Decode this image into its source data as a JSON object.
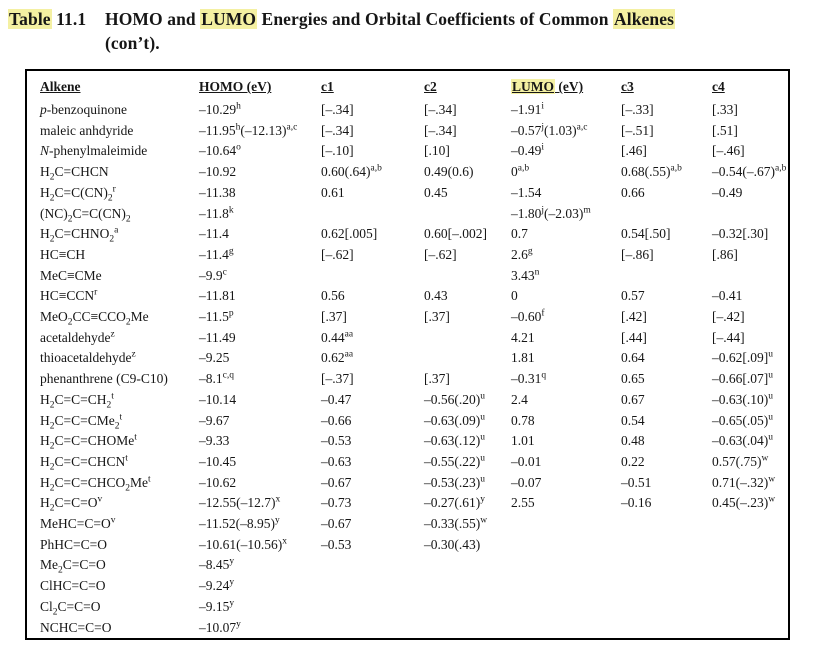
{
  "colors": {
    "highlight": "#f4f0a2",
    "border": "#000000",
    "text": "#161616",
    "background": "#ffffff"
  },
  "title": {
    "label_highlight": "Table",
    "label_number": " 11.1",
    "line1_pre": "HOMO and ",
    "line1_hl1": "LUMO",
    "line1_mid": " Energies and Orbital Coefficients of Common ",
    "line1_hl2": "Alkenes",
    "line2": "(con’t)."
  },
  "table": {
    "headers": [
      {
        "text": "Alkene"
      },
      {
        "text": "HOMO (eV)"
      },
      {
        "text": "c1"
      },
      {
        "text": "c2"
      },
      {
        "text": "LUMO (eV)",
        "highlight": "LUMO"
      },
      {
        "text": "c3"
      },
      {
        "text": "c4"
      }
    ],
    "rows": [
      [
        "*p*-benzoquinone",
        "–10.29^{h}",
        "[–.34]",
        "[–.34]",
        "–1.91^{i}",
        "[–.33]",
        "[.33]"
      ],
      [
        "maleic anhdyride",
        "–11.95^{h}(–12.13)^{a,c}",
        "[–.34]",
        "[–.34]",
        "–0.57^{j}(1.03)^{a,c}",
        "[–.51]",
        "[.51]"
      ],
      [
        "*N*-phenylmaleimide",
        "–10.64^{o}",
        "[–.10]",
        "[.10]",
        "–0.49^{i}",
        "[.46]",
        "[–.46]"
      ],
      [
        "H_{2}C=CHCN",
        "–10.92",
        "0.60(.64)^{a,b}",
        "0.49(0.6)",
        "0^{a,b}",
        "0.68(.55)^{a,b}",
        "–0.54(–.67)^{a,b}"
      ],
      [
        "H_{2}C=C(CN)_{2}^{r}",
        "–11.38",
        "0.61",
        "0.45",
        "–1.54",
        "0.66",
        "–0.49"
      ],
      [
        "(NC)_{2}C=C(CN)_{2}",
        "–11.8^{k}",
        "",
        "",
        "–1.80^{j}(–2.03)^{m}",
        "",
        ""
      ],
      [
        "H_{2}C=CHNO_{2}^{a}",
        "–11.4",
        "0.62[.005]",
        "0.60[–.002]",
        "0.7",
        "0.54[.50]",
        "–0.32[.30]"
      ],
      [
        "HC≡CH",
        "–11.4^{g}",
        "[–.62]",
        "[–.62]",
        "2.6^{g}",
        "[–.86]",
        "[.86]"
      ],
      [
        "MeC≡CMe",
        "–9.9^{c}",
        "",
        "",
        "3.43^{n}",
        "",
        ""
      ],
      [
        "HC≡CCN^{r}",
        "–11.81",
        "0.56",
        "0.43",
        "0",
        "0.57",
        "–0.41"
      ],
      [
        "MeO_{2}CC≡CCO_{2}Me",
        "–11.5^{p}",
        "[.37]",
        "[.37]",
        "–0.60^{f}",
        "[.42]",
        "[–.42]"
      ],
      [
        "acetaldehyde^{z}",
        "–11.49",
        "0.44^{aa}",
        "",
        "4.21",
        "[.44]",
        "[–.44]"
      ],
      [
        "thioacetaldehyde^{z}",
        "–9.25",
        "0.62^{aa}",
        "",
        "1.81",
        "0.64",
        "–0.62[.09]^{u}"
      ],
      [
        "phenanthrene (C9-C10)",
        "–8.1^{c,q}",
        "[–.37]",
        "[.37]",
        "–0.31^{q}",
        "0.65",
        "–0.66[.07]^{u}"
      ],
      [
        "H_{2}C=C=CH_{2}^{t}",
        "–10.14",
        "–0.47",
        "–0.56(.20)^{u}",
        "2.4",
        "0.67",
        "–0.63(.10)^{u}"
      ],
      [
        "H_{2}C=C=CMe_{2}^{t}",
        "–9.67",
        "–0.66",
        "–0.63(.09)^{u}",
        "0.78",
        "0.54",
        "–0.65(.05)^{u}"
      ],
      [
        "H_{2}C=C=CHOMe^{t}",
        "–9.33",
        "–0.53",
        "–0.63(.12)^{u}",
        "1.01",
        "0.48",
        "–0.63(.04)^{u}"
      ],
      [
        "H_{2}C=C=CHCN^{t}",
        "–10.45",
        "–0.63",
        "–0.55(.22)^{u}",
        "–0.01",
        "0.22",
        "0.57(.75)^{w}"
      ],
      [
        "H_{2}C=C=CHCO_{2}Me^{t}",
        "–10.62",
        "–0.67",
        "–0.53(.23)^{u}",
        "–0.07",
        "–0.51",
        "0.71(–.32)^{w}"
      ],
      [
        "H_{2}C=C=O^{v}",
        "–12.55(–12.7)^{x}",
        "–0.73",
        "–0.27(.61)^{y}",
        "2.55",
        "–0.16",
        "0.45(–.23)^{w}"
      ],
      [
        "MeHC=C=O^{v}",
        "–11.52(–8.95)^{y}",
        "–0.67",
        "–0.33(.55)^{w}",
        "",
        "",
        ""
      ],
      [
        "PhHC=C=O",
        "–10.61(–10.56)^{x}",
        "–0.53",
        "–0.30(.43)",
        "",
        "",
        ""
      ],
      [
        "Me_{2}C=C=O",
        "–8.45^{y}",
        "",
        "",
        "",
        "",
        ""
      ],
      [
        "ClHC=C=O",
        "–9.24^{y}",
        "",
        "",
        "",
        "",
        ""
      ],
      [
        "Cl_{2}C=C=O",
        "–9.15^{y}",
        "",
        "",
        "",
        "",
        ""
      ],
      [
        "NCHC=C=O",
        "–10.07^{y}",
        "",
        "",
        "",
        "",
        ""
      ]
    ]
  }
}
